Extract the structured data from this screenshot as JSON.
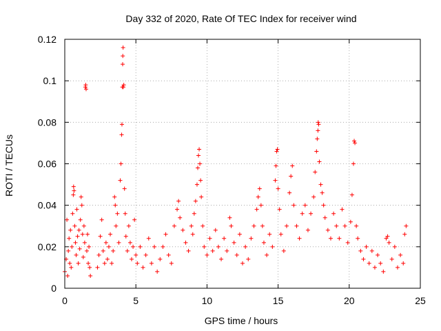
{
  "chart_data": {
    "type": "scatter",
    "title": "Day 332 of 2020, Rate Of TEC Index for receiver wind",
    "xlabel": "GPS time / hours",
    "ylabel": "ROTI / TECUs",
    "xlim": [
      0,
      25
    ],
    "ylim": [
      0,
      0.12
    ],
    "x_ticks": [
      0,
      5,
      10,
      15,
      20,
      25
    ],
    "x_tick_labels": [
      "0",
      "5",
      "10",
      "15",
      "20",
      "25"
    ],
    "y_ticks": [
      0,
      0.02,
      0.04,
      0.06,
      0.08,
      0.1,
      0.12
    ],
    "y_tick_labels": [
      "0",
      "0.02",
      "0.04",
      "0.06",
      "0.08",
      "0.1",
      "0.12"
    ],
    "grid": true,
    "marker": "plus",
    "color": "#ff0000",
    "series": [
      {
        "name": "ROTI",
        "points": [
          [
            0.0,
            0.008
          ],
          [
            0.1,
            0.014
          ],
          [
            0.15,
            0.033
          ],
          [
            0.2,
            0.006
          ],
          [
            0.25,
            0.018
          ],
          [
            0.3,
            0.024
          ],
          [
            0.35,
            0.012
          ],
          [
            0.4,
            0.028
          ],
          [
            0.45,
            0.01
          ],
          [
            0.5,
            0.02
          ],
          [
            0.55,
            0.036
          ],
          [
            0.6,
            0.045
          ],
          [
            0.62,
            0.049
          ],
          [
            0.65,
            0.047
          ],
          [
            0.7,
            0.03
          ],
          [
            0.75,
            0.022
          ],
          [
            0.8,
            0.016
          ],
          [
            0.85,
            0.038
          ],
          [
            0.9,
            0.025
          ],
          [
            0.95,
            0.012
          ],
          [
            1.0,
            0.028
          ],
          [
            1.05,
            0.019
          ],
          [
            1.1,
            0.033
          ],
          [
            1.15,
            0.044
          ],
          [
            1.2,
            0.04
          ],
          [
            1.25,
            0.026
          ],
          [
            1.3,
            0.015
          ],
          [
            1.35,
            0.03
          ],
          [
            1.4,
            0.022
          ],
          [
            1.45,
            0.097
          ],
          [
            1.47,
            0.098
          ],
          [
            1.5,
            0.096
          ],
          [
            1.55,
            0.018
          ],
          [
            1.6,
            0.026
          ],
          [
            1.65,
            0.012
          ],
          [
            1.7,
            0.02
          ],
          [
            1.75,
            0.01
          ],
          [
            1.8,
            0.006
          ],
          [
            2.3,
            0.01
          ],
          [
            2.4,
            0.016
          ],
          [
            2.5,
            0.025
          ],
          [
            2.6,
            0.033
          ],
          [
            2.7,
            0.018
          ],
          [
            2.8,
            0.012
          ],
          [
            2.9,
            0.022
          ],
          [
            3.0,
            0.014
          ],
          [
            3.1,
            0.02
          ],
          [
            3.2,
            0.026
          ],
          [
            3.3,
            0.012
          ],
          [
            3.4,
            0.018
          ],
          [
            3.5,
            0.044
          ],
          [
            3.55,
            0.04
          ],
          [
            3.6,
            0.03
          ],
          [
            3.7,
            0.036
          ],
          [
            3.8,
            0.022
          ],
          [
            3.9,
            0.052
          ],
          [
            3.95,
            0.06
          ],
          [
            4.0,
            0.074
          ],
          [
            4.02,
            0.079
          ],
          [
            4.05,
            0.097
          ],
          [
            4.07,
            0.108
          ],
          [
            4.08,
            0.112
          ],
          [
            4.1,
            0.116
          ],
          [
            4.12,
            0.097
          ],
          [
            4.15,
            0.098
          ],
          [
            4.2,
            0.048
          ],
          [
            4.25,
            0.036
          ],
          [
            4.3,
            0.025
          ],
          [
            4.4,
            0.018
          ],
          [
            4.5,
            0.03
          ],
          [
            4.6,
            0.022
          ],
          [
            4.7,
            0.014
          ],
          [
            4.8,
            0.02
          ],
          [
            4.9,
            0.033
          ],
          [
            5.0,
            0.016
          ],
          [
            5.1,
            0.012
          ],
          [
            5.3,
            0.02
          ],
          [
            5.5,
            0.01
          ],
          [
            5.7,
            0.016
          ],
          [
            5.9,
            0.024
          ],
          [
            6.1,
            0.012
          ],
          [
            6.3,
            0.02
          ],
          [
            6.5,
            0.008
          ],
          [
            6.7,
            0.014
          ],
          [
            6.9,
            0.02
          ],
          [
            7.1,
            0.026
          ],
          [
            7.3,
            0.016
          ],
          [
            7.5,
            0.012
          ],
          [
            7.7,
            0.03
          ],
          [
            7.9,
            0.038
          ],
          [
            8.0,
            0.042
          ],
          [
            8.1,
            0.034
          ],
          [
            8.3,
            0.028
          ],
          [
            8.5,
            0.022
          ],
          [
            8.7,
            0.018
          ],
          [
            8.9,
            0.03
          ],
          [
            9.0,
            0.026
          ],
          [
            9.1,
            0.036
          ],
          [
            9.2,
            0.042
          ],
          [
            9.3,
            0.05
          ],
          [
            9.35,
            0.058
          ],
          [
            9.4,
            0.064
          ],
          [
            9.45,
            0.067
          ],
          [
            9.5,
            0.06
          ],
          [
            9.55,
            0.052
          ],
          [
            9.6,
            0.044
          ],
          [
            9.7,
            0.03
          ],
          [
            9.8,
            0.02
          ],
          [
            10.0,
            0.016
          ],
          [
            10.2,
            0.024
          ],
          [
            10.4,
            0.018
          ],
          [
            10.6,
            0.028
          ],
          [
            10.8,
            0.02
          ],
          [
            11.0,
            0.014
          ],
          [
            11.2,
            0.024
          ],
          [
            11.4,
            0.018
          ],
          [
            11.6,
            0.034
          ],
          [
            11.7,
            0.03
          ],
          [
            11.9,
            0.022
          ],
          [
            12.1,
            0.016
          ],
          [
            12.3,
            0.026
          ],
          [
            12.5,
            0.012
          ],
          [
            12.7,
            0.02
          ],
          [
            12.9,
            0.014
          ],
          [
            13.1,
            0.024
          ],
          [
            13.3,
            0.03
          ],
          [
            13.5,
            0.038
          ],
          [
            13.6,
            0.044
          ],
          [
            13.7,
            0.048
          ],
          [
            13.8,
            0.04
          ],
          [
            13.9,
            0.03
          ],
          [
            14.0,
            0.022
          ],
          [
            14.2,
            0.016
          ],
          [
            14.4,
            0.026
          ],
          [
            14.6,
            0.02
          ],
          [
            14.8,
            0.052
          ],
          [
            14.85,
            0.059
          ],
          [
            14.9,
            0.066
          ],
          [
            14.95,
            0.067
          ],
          [
            15.0,
            0.048
          ],
          [
            15.1,
            0.038
          ],
          [
            15.2,
            0.026
          ],
          [
            15.4,
            0.018
          ],
          [
            15.6,
            0.03
          ],
          [
            15.8,
            0.046
          ],
          [
            15.9,
            0.054
          ],
          [
            16.0,
            0.059
          ],
          [
            16.1,
            0.04
          ],
          [
            16.3,
            0.03
          ],
          [
            16.5,
            0.024
          ],
          [
            16.7,
            0.036
          ],
          [
            16.9,
            0.04
          ],
          [
            17.1,
            0.028
          ],
          [
            17.3,
            0.036
          ],
          [
            17.5,
            0.044
          ],
          [
            17.6,
            0.056
          ],
          [
            17.7,
            0.066
          ],
          [
            17.75,
            0.072
          ],
          [
            17.8,
            0.076
          ],
          [
            17.82,
            0.08
          ],
          [
            17.85,
            0.079
          ],
          [
            17.9,
            0.061
          ],
          [
            18.0,
            0.05
          ],
          [
            18.1,
            0.046
          ],
          [
            18.2,
            0.04
          ],
          [
            18.3,
            0.034
          ],
          [
            18.5,
            0.028
          ],
          [
            18.7,
            0.024
          ],
          [
            18.9,
            0.036
          ],
          [
            19.1,
            0.03
          ],
          [
            19.3,
            0.024
          ],
          [
            19.5,
            0.038
          ],
          [
            19.7,
            0.03
          ],
          [
            19.9,
            0.022
          ],
          [
            20.1,
            0.032
          ],
          [
            20.2,
            0.045
          ],
          [
            20.3,
            0.06
          ],
          [
            20.35,
            0.071
          ],
          [
            20.4,
            0.07
          ],
          [
            20.5,
            0.03
          ],
          [
            20.6,
            0.024
          ],
          [
            20.8,
            0.018
          ],
          [
            21.0,
            0.014
          ],
          [
            21.2,
            0.02
          ],
          [
            21.4,
            0.012
          ],
          [
            21.6,
            0.018
          ],
          [
            21.8,
            0.01
          ],
          [
            22.0,
            0.016
          ],
          [
            22.2,
            0.012
          ],
          [
            22.4,
            0.008
          ],
          [
            22.6,
            0.024
          ],
          [
            22.7,
            0.025
          ],
          [
            22.8,
            0.022
          ],
          [
            23.0,
            0.014
          ],
          [
            23.2,
            0.02
          ],
          [
            23.4,
            0.01
          ],
          [
            23.6,
            0.016
          ],
          [
            23.8,
            0.012
          ],
          [
            23.9,
            0.026
          ],
          [
            24.0,
            0.03
          ]
        ]
      }
    ]
  }
}
